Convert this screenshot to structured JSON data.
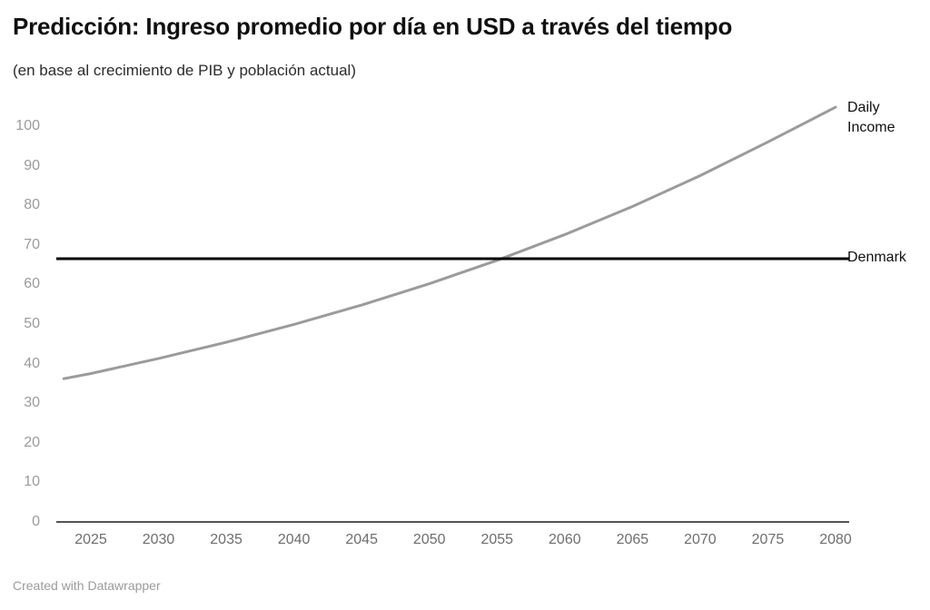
{
  "header": {
    "title": "Predicción: Ingreso promedio por día en USD a través del tiempo",
    "subtitle": "(en base al crecimiento de PIB y población actual)"
  },
  "footer": {
    "credit": "Created with Datawrapper"
  },
  "chart_data": {
    "type": "line",
    "title": "Predicción: Ingreso promedio por día en USD a través del tiempo",
    "subtitle": "(en base al crecimiento de PIB y población actual)",
    "x": [
      2023,
      2025,
      2030,
      2035,
      2040,
      2045,
      2050,
      2055,
      2060,
      2065,
      2070,
      2075,
      2080
    ],
    "series": [
      {
        "name": "Daily Income",
        "color": "#9b9b9b",
        "values": [
          36.2,
          37.5,
          41.3,
          45.4,
          49.9,
          54.8,
          60.2,
          66.1,
          72.6,
          79.7,
          87.5,
          96.0,
          104.8
        ]
      },
      {
        "name": "Denmark",
        "color": "#000000",
        "constant_value": 66.5
      }
    ],
    "x_ticks": [
      2025,
      2030,
      2035,
      2040,
      2045,
      2050,
      2055,
      2060,
      2065,
      2070,
      2075,
      2080
    ],
    "y_ticks": [
      0,
      10,
      20,
      30,
      40,
      50,
      60,
      70,
      80,
      90,
      100
    ],
    "xlim": [
      2023,
      2081
    ],
    "ylim": [
      0,
      107
    ],
    "grid": false,
    "legend_position": "inline-right",
    "axis_color": "#1a1a1a"
  }
}
